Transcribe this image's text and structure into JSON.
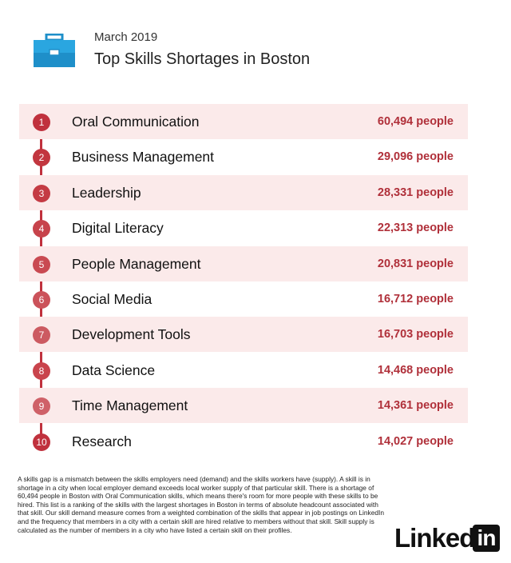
{
  "header": {
    "date": "March 2019",
    "title": "Top Skills Shortages in Boston",
    "icon": "briefcase-icon"
  },
  "colors": {
    "accent": "#c0313d",
    "row_shade": "#fbeaea",
    "value_text": "#b0303a"
  },
  "chart_data": {
    "type": "table",
    "title": "Top Skills Shortages in Boston",
    "unit": "people",
    "rows": [
      {
        "rank": "1",
        "skill": "Oral Communication",
        "value": 60494,
        "display": "60,494"
      },
      {
        "rank": "2",
        "skill": "Business Management",
        "value": 29096,
        "display": "29,096"
      },
      {
        "rank": "3",
        "skill": "Leadership",
        "value": 28331,
        "display": "28,331"
      },
      {
        "rank": "4",
        "skill": "Digital Literacy",
        "value": 22313,
        "display": "22,313"
      },
      {
        "rank": "5",
        "skill": "People Management",
        "value": 20831,
        "display": "20,831"
      },
      {
        "rank": "6",
        "skill": "Social Media",
        "value": 16712,
        "display": "16,712"
      },
      {
        "rank": "7",
        "skill": "Development Tools",
        "value": 16703,
        "display": "16,703"
      },
      {
        "rank": "8",
        "skill": "Data Science",
        "value": 14468,
        "display": "14,468"
      },
      {
        "rank": "9",
        "skill": "Time Management",
        "value": 14361,
        "display": "14,361"
      },
      {
        "rank": "10",
        "skill": "Research",
        "value": 14027,
        "display": "14,027"
      }
    ]
  },
  "footnote": "A skills gap is a mismatch between the skills employers need (demand) and the skills workers have (supply). A skill is in shortage in a city when local employer demand exceeds local worker supply of that particular skill. There is a shortage of 60,494 people in Boston with Oral Communication skills, which means there's room for more people with these skills to be hired. This list is a ranking of the skills with the largest shortages in Boston in terms of absolute headcount associated with that skill. Our skill demand measure comes from a weighted combination of the skills that appear in job postings on LinkedIn and the frequency that members in a city with a certain skill are hired relative to members without that skill. Skill supply is calculated as the number of members in a city who have listed a certain skill on their profiles.",
  "logo": {
    "word": "Linked",
    "box": "in"
  }
}
